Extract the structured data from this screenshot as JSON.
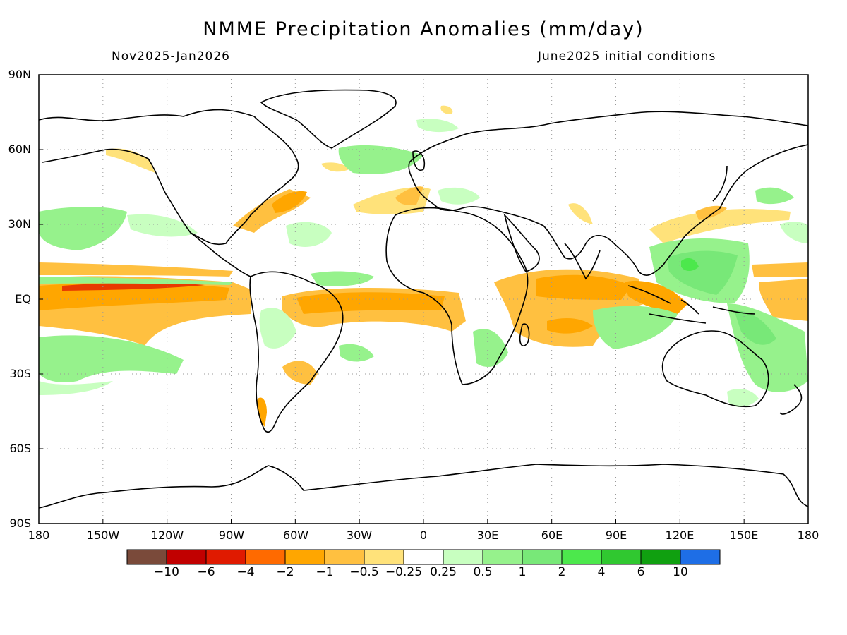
{
  "title": "NMME Precipitation Anomalies (mm/day)",
  "subtitle_left": "Nov2025-Jan2026",
  "subtitle_right": "June2025 initial conditions",
  "lat_labels": [
    "90N",
    "60N",
    "30N",
    "EQ",
    "30S",
    "60S",
    "90S"
  ],
  "lon_labels": [
    "180",
    "150W",
    "120W",
    "90W",
    "60W",
    "30W",
    "0",
    "30E",
    "60E",
    "90E",
    "120E",
    "150E",
    "180"
  ],
  "colorbar": {
    "colors": [
      "#7a4a3a",
      "#c10000",
      "#e01a00",
      "#ff6a00",
      "#ffa600",
      "#ffc040",
      "#ffe27a",
      "#ffffff",
      "#c8ffc0",
      "#96f28c",
      "#78e878",
      "#4ce84c",
      "#30c830",
      "#10a010",
      "#1e6ee6"
    ],
    "labels": [
      "−10",
      "−6",
      "−4",
      "−2",
      "−1",
      "−0.5",
      "−0.25",
      "0.25",
      "0.5",
      "1",
      "2",
      "4",
      "6",
      "10"
    ]
  },
  "anomaly_colors": {
    "dry_light": "#ffe27a",
    "dry_mid": "#ffc040",
    "dry_strong": "#ffa600",
    "dry_heavy": "#ff7a10",
    "dry_extreme": "#e83a00",
    "wet_light": "#c8ffc0",
    "wet_mid": "#96f28c",
    "wet_strong": "#78e878",
    "wet_heavy": "#4ce84c"
  }
}
